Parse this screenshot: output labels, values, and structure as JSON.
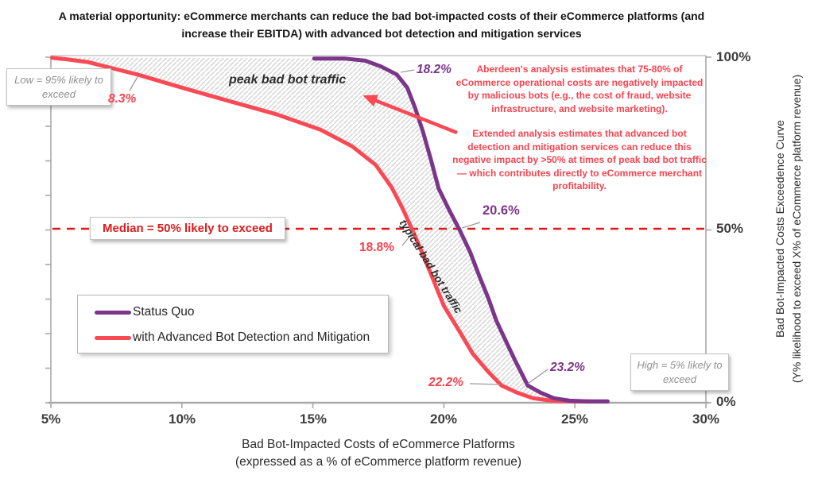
{
  "title": "A material opportunity: eCommerce merchants can reduce the bad bot-impacted costs of their eCommerce platforms (and increase their EBITDA) with advanced bot detection and mitigation services",
  "annotations": {
    "low_box": "Low = 95% likely to exceed",
    "high_box": "High = 5% likely to exceed",
    "median_box": "Median = 50% likely to exceed",
    "peak_label": "peak bad bot traffic",
    "typical_label": "typical bad bot traffic",
    "analysis_para1": "Aberdeen's analysis estimates that 75-80% of eCommerce operational costs are negatively impacted by malicious bots (e.g., the cost of fraud, website infrastructure, and website marketing).",
    "analysis_para2": "Extended analysis estimates that advanced bot detection and mitigation services can reduce this negative impact by >50% at times of peak bad bot traffic — which contributes directly to eCommerce merchant profitability."
  },
  "point_labels": {
    "status_quo_95": "18.2%",
    "status_quo_median": "20.6%",
    "status_quo_5": "23.2%",
    "advanced_95": "8.3%",
    "advanced_median": "18.8%",
    "advanced_5": "22.2%"
  },
  "legend": {
    "status_quo": "Status Quo",
    "advanced": "with Advanced Bot Detection and Mitigation"
  },
  "axes": {
    "x_title_line1": "Bad Bot-Impacted Costs of eCommerce Platforms",
    "x_title_line2": "(expressed as a % of eCommerce platform revenue)",
    "y_title_line1": "Bad Bot-Impacted Costs Exceedence Curve",
    "y_title_line2": "(Y% likelihood to exceed X% of eCommerce platform revenue)",
    "x_ticks": [
      "5%",
      "10%",
      "15%",
      "20%",
      "25%",
      "30%"
    ],
    "y_ticks": [
      "100%",
      "50%",
      "0%"
    ]
  },
  "colors": {
    "status_quo": "#7b3589",
    "advanced": "#f84a55",
    "median_line": "#e01a1a",
    "annotation_text": "#f8434f",
    "axis": "#a9a9a9",
    "hatch": "#d6d6d6"
  },
  "chart_data": {
    "type": "line",
    "title": "Bad Bot-Impacted Costs Exceedence Curve",
    "xlabel": "Bad Bot-Impacted Costs of eCommerce Platforms (expressed as a % of eCommerce platform revenue)",
    "ylabel": "Y% likelihood to exceed X% of eCommerce platform revenue",
    "xlim": [
      5,
      30
    ],
    "ylim": [
      0,
      100
    ],
    "grid": false,
    "legend_position": "lower-left",
    "median_likelihood_pct": 50,
    "key_points": {
      "status_quo": {
        "likely_95_pct_cost": 18.2,
        "median_50_pct_cost": 20.6,
        "likely_5_pct_cost": 23.2
      },
      "advanced": {
        "likely_95_pct_cost": 8.3,
        "median_50_pct_cost": 18.8,
        "likely_5_pct_cost": 22.2
      }
    },
    "series": [
      {
        "name": "Status Quo",
        "color": "#7b3589",
        "points": [
          [
            15.05,
            99.6
          ],
          [
            16.2,
            99.6
          ],
          [
            17.0,
            99.0
          ],
          [
            17.6,
            97.3
          ],
          [
            18.2,
            95.0
          ],
          [
            18.6,
            91.2
          ],
          [
            18.9,
            85.4
          ],
          [
            19.2,
            78.5
          ],
          [
            19.5,
            70.5
          ],
          [
            19.8,
            62.0
          ],
          [
            20.2,
            55.8
          ],
          [
            20.6,
            50.0
          ],
          [
            21.0,
            43.6
          ],
          [
            21.35,
            36.7
          ],
          [
            21.7,
            30.2
          ],
          [
            22.0,
            23.8
          ],
          [
            22.35,
            18.1
          ],
          [
            22.7,
            12.5
          ],
          [
            23.2,
            5.0
          ],
          [
            23.7,
            2.9
          ],
          [
            24.2,
            1.3
          ],
          [
            24.8,
            0.6
          ],
          [
            25.5,
            0.4
          ],
          [
            26.25,
            0.4
          ]
        ]
      },
      {
        "name": "with Advanced Bot Detection and Mitigation",
        "color": "#f84a55",
        "points": [
          [
            5.05,
            99.8
          ],
          [
            5.6,
            99.4
          ],
          [
            6.4,
            98.6
          ],
          [
            7.3,
            96.9
          ],
          [
            8.3,
            95.0
          ],
          [
            10.0,
            91.2
          ],
          [
            11.8,
            87.3
          ],
          [
            13.6,
            83.5
          ],
          [
            15.3,
            79.0
          ],
          [
            16.5,
            74.2
          ],
          [
            17.4,
            68.8
          ],
          [
            18.0,
            62.4
          ],
          [
            18.4,
            56.6
          ],
          [
            18.8,
            50.0
          ],
          [
            19.2,
            42.9
          ],
          [
            19.6,
            35.5
          ],
          [
            20.0,
            28.0
          ],
          [
            20.6,
            20.6
          ],
          [
            21.1,
            14.2
          ],
          [
            21.7,
            8.9
          ],
          [
            22.2,
            5.0
          ],
          [
            22.8,
            2.9
          ],
          [
            23.4,
            1.3
          ],
          [
            24.1,
            0.6
          ],
          [
            24.9,
            0.4
          ],
          [
            25.6,
            0.4
          ]
        ]
      }
    ]
  }
}
